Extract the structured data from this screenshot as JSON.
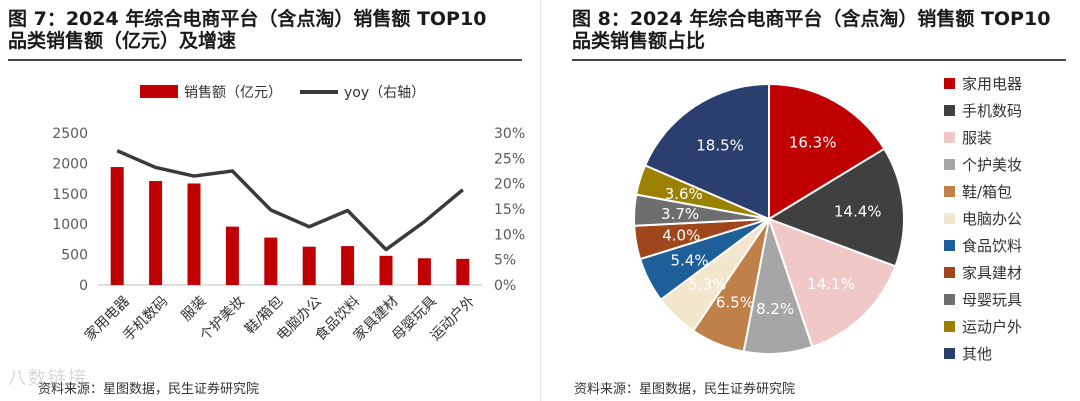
{
  "left": {
    "title_line1": "图 7：2024 年综合电商平台（含点淘）销售额 TOP10",
    "title_line2": "品类销售额（亿元）及增速",
    "source": "资料来源：星图数据，民生证券研究院"
  },
  "right": {
    "title_line1": "图 8：2024 年综合电商平台（含点淘）销售额 TOP10",
    "title_line2": "品类销售额占比",
    "source": "资料来源：星图数据，民生证券研究院"
  },
  "watermark": "八数链接",
  "colors": {
    "bar": "#c00000",
    "line": "#3a3a3a",
    "axis": "#bfbfbf",
    "text": "#595959"
  },
  "chart_data": [
    {
      "type": "bar",
      "categories": [
        "家用电器",
        "手机数码",
        "服装",
        "个护美妆",
        "鞋/箱包",
        "电脑办公",
        "食品饮料",
        "家具建材",
        "母婴玩具",
        "运动户外"
      ],
      "series": [
        {
          "name": "销售额（亿元）",
          "type": "bar",
          "axis": "left",
          "values": [
            1940,
            1710,
            1670,
            960,
            780,
            630,
            640,
            480,
            440,
            430
          ]
        },
        {
          "name": "yoy（右轴）",
          "type": "line",
          "axis": "right",
          "values": [
            26.5,
            23.2,
            21.5,
            22.5,
            14.8,
            11.5,
            14.7,
            7.0,
            12.5,
            18.8
          ]
        }
      ],
      "y_left": {
        "min": 0,
        "max": 2500,
        "ticks": [
          "0",
          "500",
          "1000",
          "1500",
          "2000",
          "2500"
        ]
      },
      "y_right": {
        "min": 0,
        "max": 30,
        "ticks": [
          "0%",
          "5%",
          "10%",
          "15%",
          "20%",
          "25%",
          "30%"
        ]
      },
      "legend": "top"
    },
    {
      "type": "pie",
      "labels": [
        "家用电器",
        "手机数码",
        "服装",
        "个护美妆",
        "鞋/箱包",
        "电脑办公",
        "食品饮料",
        "家具建材",
        "母婴玩具",
        "运动户外",
        "其他"
      ],
      "values": [
        16.3,
        14.4,
        14.1,
        8.2,
        6.5,
        5.3,
        5.4,
        4.0,
        3.7,
        3.6,
        18.5
      ],
      "value_labels": [
        "16.3%",
        "14.4%",
        "14.1%",
        "8.2%",
        "6.5%",
        "5.3%",
        "5.4%",
        "4.0%",
        "3.7%",
        "3.6%",
        "18.5%"
      ],
      "colors": [
        "#c00000",
        "#404040",
        "#f0c8c8",
        "#a6a6a6",
        "#c0804a",
        "#f2e6cc",
        "#1f5f99",
        "#a0461c",
        "#6e6e6e",
        "#9c8000",
        "#2a3f6e"
      ],
      "label_colors": [
        "#ffffff",
        "#ffffff",
        "#ffffff",
        "#ffffff",
        "#ffffff",
        "#ffffff",
        "#ffffff",
        "#ffffff",
        "#ffffff",
        "#ffffff",
        "#ffffff"
      ],
      "legend": "right"
    }
  ]
}
